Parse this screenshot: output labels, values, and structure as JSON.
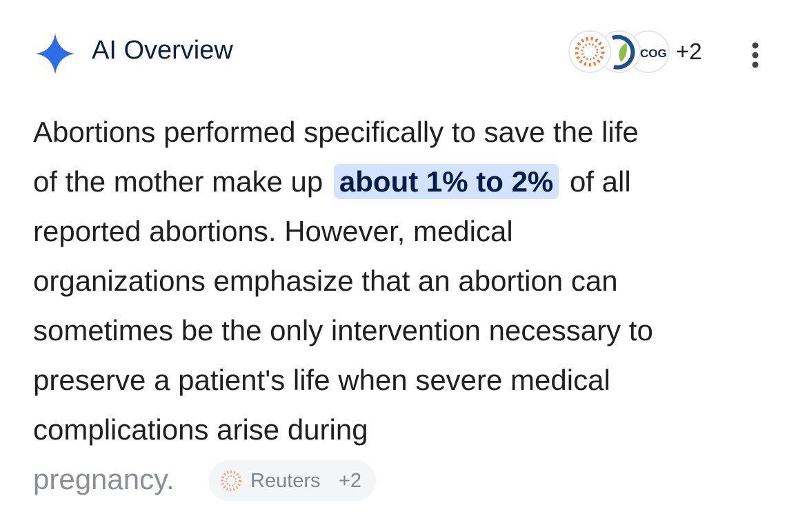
{
  "header": {
    "title": "AI Overview",
    "source_logo_text": "COG",
    "sources_more": "+2"
  },
  "paragraph": {
    "line_1": "Abortions performed specifically to save the life",
    "line_2_before": "of the mother make up",
    "highlight": "about 1% to 2%",
    "line_2_after": "of all",
    "lines_rest": [
      "reported abortions. However, medical",
      "organizations emphasize that an abortion can",
      "sometimes be the only intervention necessary to",
      "preserve a patient's life when severe medical",
      "complications arise during"
    ],
    "last_line": "pregnancy."
  },
  "citation": {
    "source": "Reuters",
    "more": "+2"
  }
}
